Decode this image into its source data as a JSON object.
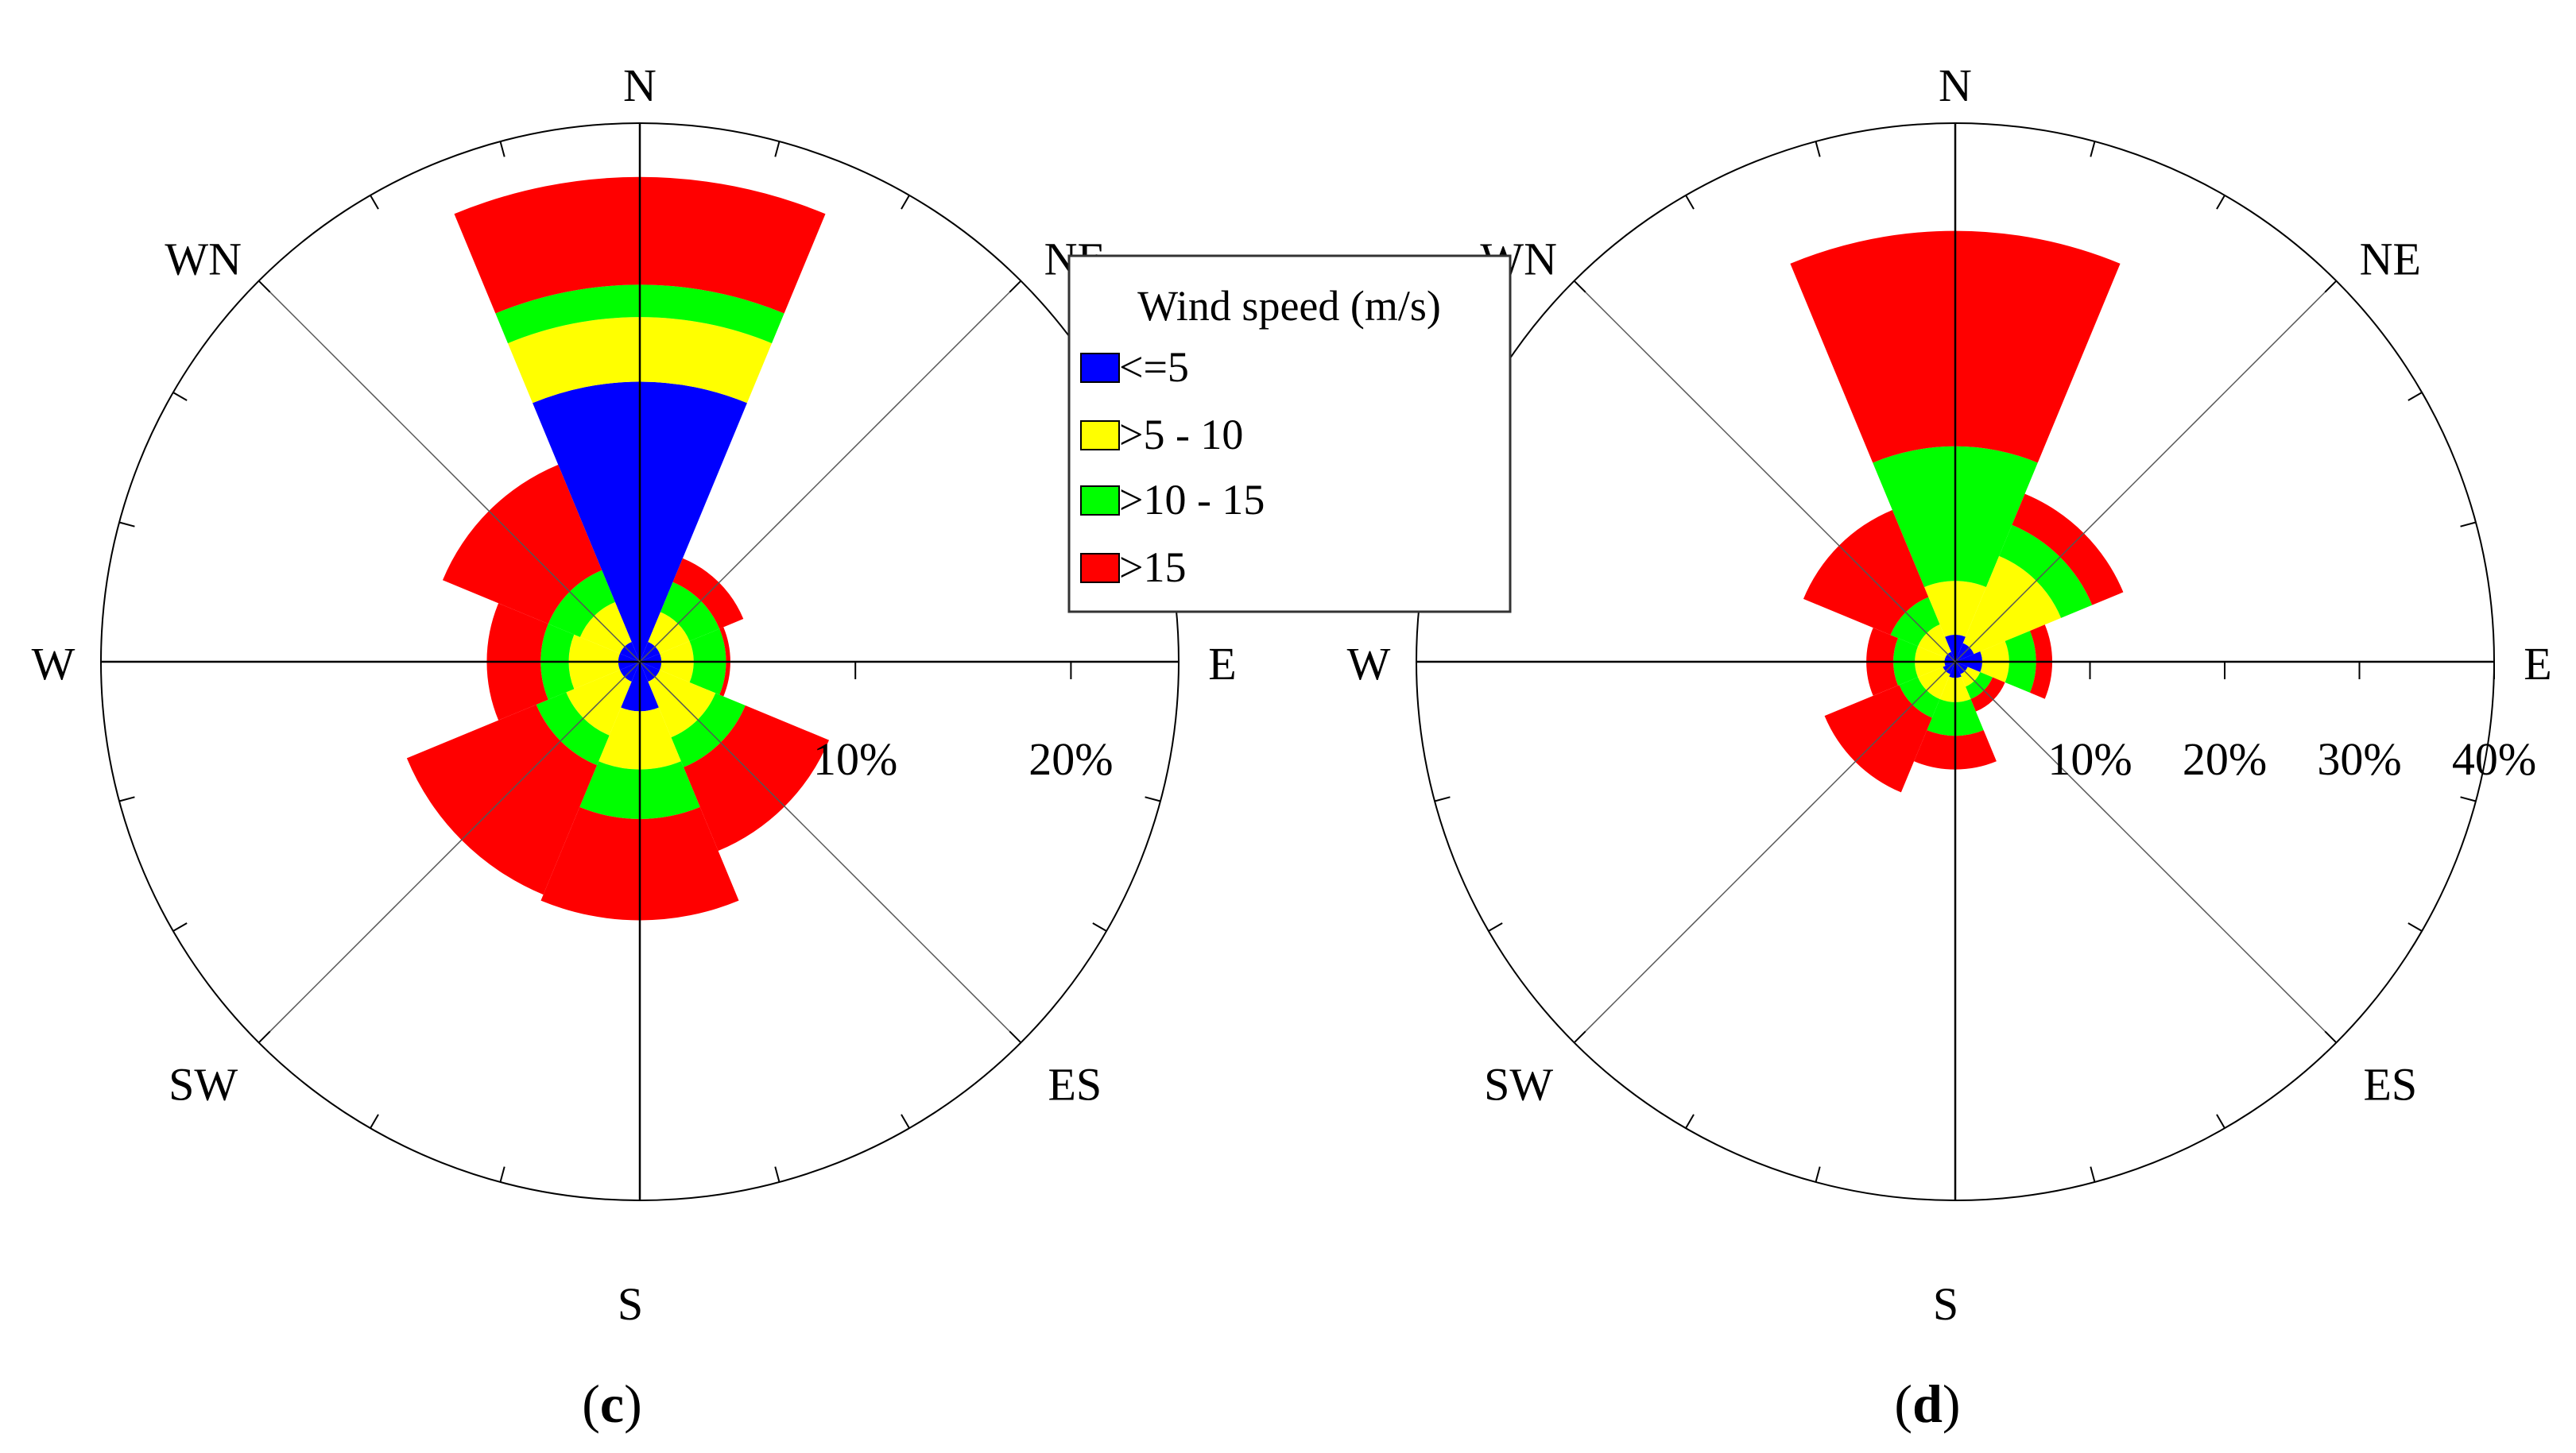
{
  "chart_data": [
    {
      "type": "wind_rose",
      "panel_label_open": "(",
      "panel_label": "c",
      "panel_label_close": ")",
      "directions": [
        "N",
        "NE",
        "E",
        "ES",
        "S",
        "SW",
        "W",
        "WN"
      ],
      "radial_ticks": [
        10,
        20
      ],
      "radial_tick_labels": [
        "10%",
        "20%"
      ],
      "rmax": 25,
      "series": [
        {
          "name": "<=5",
          "values": [
            13,
            1,
            1,
            1,
            2.3,
            1,
            1,
            1
          ]
        },
        {
          "name": ">5 - 10",
          "values": [
            3,
            1.5,
            1.5,
            2.8,
            2.7,
            2.7,
            2.3,
            2
          ]
        },
        {
          "name": ">10 - 15",
          "values": [
            1.5,
            1.5,
            1.5,
            1.5,
            2.3,
            1.5,
            1.3,
            1.6
          ]
        },
        {
          "name": ">15",
          "values": [
            5,
            1.2,
            0.2,
            4.2,
            4.7,
            6.5,
            2.5,
            5.3
          ]
        }
      ]
    },
    {
      "type": "wind_rose",
      "panel_label_open": "(",
      "panel_label": "d",
      "panel_label_close": ")",
      "directions": [
        "N",
        "NE",
        "E",
        "ES",
        "S",
        "SW",
        "W",
        "WN"
      ],
      "radial_ticks": [
        10,
        20,
        30,
        40
      ],
      "radial_tick_labels": [
        "10%",
        "20%",
        "30%",
        "40%"
      ],
      "rmax": 40,
      "series": [
        {
          "name": "<=5",
          "values": [
            2,
            1.5,
            2,
            1,
            1.2,
            1,
            0.8,
            0.8
          ]
        },
        {
          "name": ">5 - 10",
          "values": [
            4,
            7,
            2,
            1,
            1.8,
            2,
            2.2,
            2.2
          ]
        },
        {
          "name": ">10 - 15",
          "values": [
            10,
            2.5,
            2,
            1,
            2.5,
            1.5,
            1.6,
            2.2
          ]
        },
        {
          "name": ">15",
          "values": [
            16,
            2.5,
            1.2,
            1,
            2.5,
            6,
            2,
            7
          ]
        }
      ]
    }
  ],
  "legend": {
    "title": "Wind speed (m/s)",
    "items": [
      {
        "label": "<=5",
        "color": "#0000ff"
      },
      {
        "label": ">5 - 10",
        "color": "#ffff00"
      },
      {
        "label": ">10 - 15",
        "color": "#00ff00"
      },
      {
        "label": ">15",
        "color": "#ff0000"
      }
    ]
  }
}
